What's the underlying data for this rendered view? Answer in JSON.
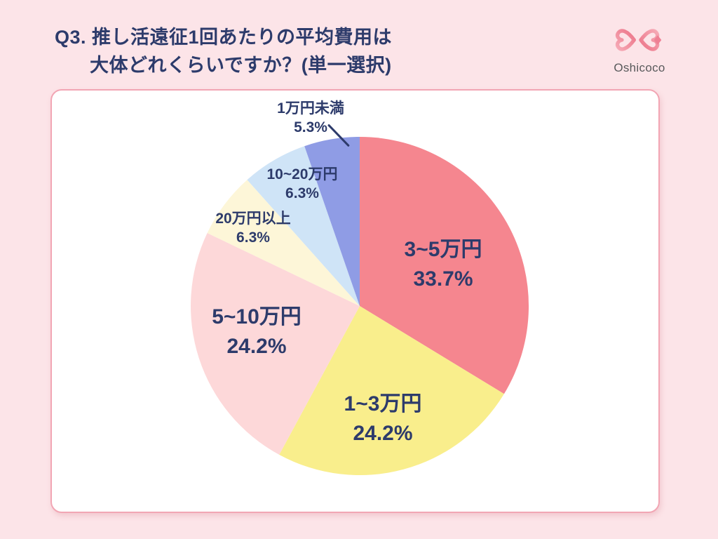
{
  "page": {
    "colors": {
      "background": "#fce4e8",
      "card_bg": "#ffffff",
      "card_border": "#f2a6b4",
      "text_navy": "#2d3b6b",
      "logo_pink": "#ee8094",
      "logo_text_gray": "#58595b"
    }
  },
  "header": {
    "title_line1": "Q3. 推し活遠征1回あたりの平均費用は",
    "title_line2": "大体どれくらいですか？(単一選択)",
    "logo": {
      "text": "Oshicoco",
      "icon": "double-heart-infinity-icon"
    }
  },
  "chart_data": {
    "type": "pie",
    "title": "Q3. 推し活遠征1回あたりの平均費用は大体どれくらいですか？(単一選択)",
    "categories": [
      "3~5万円",
      "1~3万円",
      "5~10万円",
      "20万円以上",
      "10~20万円",
      "1万円未満"
    ],
    "values": [
      33.7,
      24.2,
      24.2,
      6.3,
      6.3,
      5.3
    ],
    "display_values": [
      "33.7%",
      "24.2%",
      "24.2%",
      "6.3%",
      "6.3%",
      "5.3%"
    ],
    "unit": "%",
    "start_at": "12-oclock",
    "direction": "clockwise",
    "colors": [
      "#f5868f",
      "#f9ee8c",
      "#fdd8d9",
      "#fdf6d8",
      "#cfe4f7",
      "#8f9ce5"
    ],
    "legend": "none",
    "label_style": "bold navy labels inside slices; smallest slice labeled outside with leader line"
  }
}
